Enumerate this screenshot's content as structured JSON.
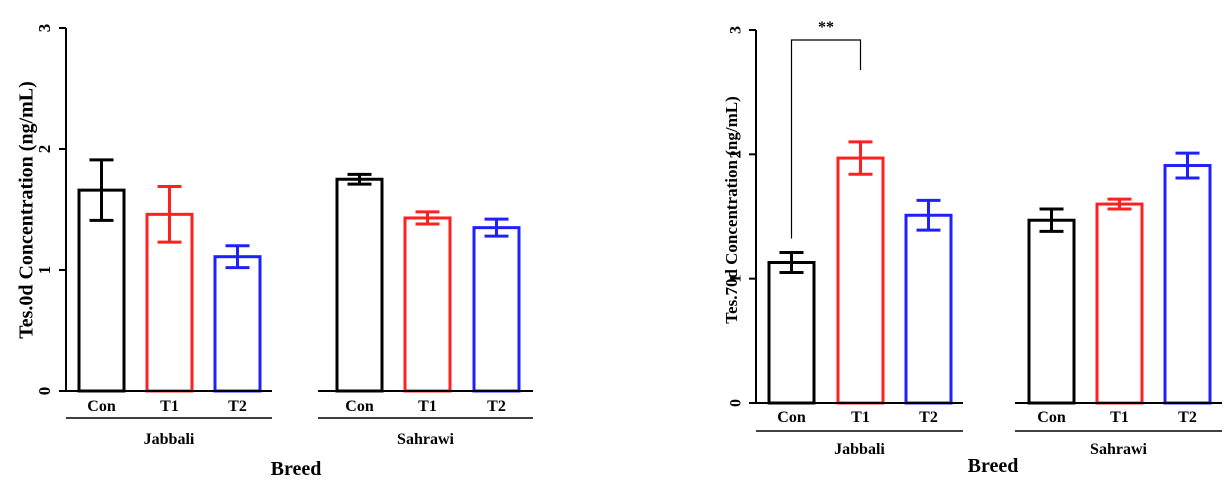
{
  "colors": {
    "Con": "#000000",
    "T1": "#ff2020",
    "T2": "#2020ff",
    "axis": "#000000"
  },
  "chart_data": [
    {
      "type": "bar",
      "ylabel": "Tes.0d Concentration (ng/mL)",
      "xlabel": "Breed",
      "ylim": [
        0,
        3
      ],
      "yticks": [
        "0",
        "1",
        "2",
        "3"
      ],
      "groups": [
        {
          "name": "Jabbali",
          "categories": [
            "Con",
            "T1",
            "T2"
          ],
          "values": [
            1.66,
            1.46,
            1.11
          ],
          "errors": [
            0.25,
            0.23,
            0.09
          ]
        },
        {
          "name": "Sahrawi",
          "categories": [
            "Con",
            "T1",
            "T2"
          ],
          "values": [
            1.75,
            1.43,
            1.35
          ],
          "errors": [
            0.04,
            0.05,
            0.07
          ]
        }
      ],
      "annotations": []
    },
    {
      "type": "bar",
      "ylabel": "Tes.70d Concentration (ng/mL)",
      "xlabel": "Breed",
      "ylim": [
        0,
        3
      ],
      "yticks": [
        "0",
        "1",
        "2",
        "3"
      ],
      "groups": [
        {
          "name": "Jabbali",
          "categories": [
            "Con",
            "T1",
            "T2"
          ],
          "values": [
            1.13,
            1.97,
            1.51
          ],
          "errors": [
            0.08,
            0.13,
            0.12
          ]
        },
        {
          "name": "Sahrawi",
          "categories": [
            "Con",
            "T1",
            "T2"
          ],
          "values": [
            1.47,
            1.6,
            1.91
          ],
          "errors": [
            0.09,
            0.04,
            0.1
          ]
        }
      ],
      "annotations": [
        {
          "label": "**",
          "from": "Con",
          "to": "T1",
          "group": "Jabbali"
        }
      ]
    }
  ]
}
